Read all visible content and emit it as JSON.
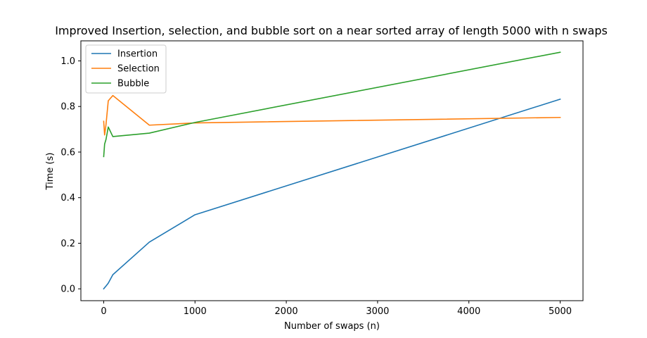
{
  "chart_data": {
    "type": "line",
    "title": "Improved Insertion, selection, and bubble sort on a near sorted array of length 5000 with n swaps",
    "xlabel": "Number of swaps (n)",
    "ylabel": "Time (s)",
    "xlim": [
      -250,
      5250
    ],
    "ylim": [
      -0.052,
      1.088
    ],
    "xticks": [
      0,
      1000,
      2000,
      3000,
      4000,
      5000
    ],
    "xtick_labels": [
      "0",
      "1000",
      "2000",
      "3000",
      "4000",
      "5000"
    ],
    "yticks": [
      0.0,
      0.2,
      0.4,
      0.6,
      0.8,
      1.0
    ],
    "ytick_labels": [
      "0.0",
      "0.2",
      "0.4",
      "0.6",
      "0.8",
      "1.0"
    ],
    "grid": false,
    "legend_position": "top-left",
    "series": [
      {
        "name": "Insertion",
        "color": "#1f77b4",
        "x": [
          0,
          10,
          25,
          50,
          100,
          500,
          1000,
          5000
        ],
        "y": [
          0.0,
          0.005,
          0.012,
          0.025,
          0.062,
          0.205,
          0.325,
          0.832
        ]
      },
      {
        "name": "Selection",
        "color": "#ff7f0e",
        "x": [
          0,
          10,
          25,
          50,
          100,
          500,
          1000,
          5000
        ],
        "y": [
          0.735,
          0.675,
          0.72,
          0.825,
          0.848,
          0.718,
          0.728,
          0.752
        ]
      },
      {
        "name": "Bubble",
        "color": "#2ca02c",
        "x": [
          0,
          10,
          25,
          50,
          100,
          500,
          1000,
          5000
        ],
        "y": [
          0.58,
          0.635,
          0.655,
          0.71,
          0.668,
          0.683,
          0.73,
          1.038
        ]
      }
    ]
  }
}
